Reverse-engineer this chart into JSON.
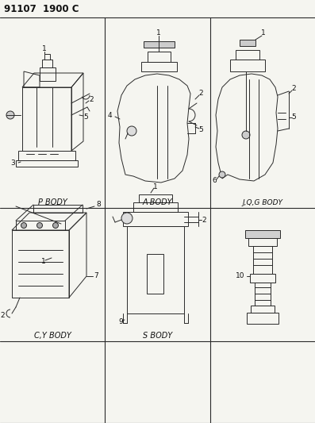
{
  "title": "91107  1900 C",
  "bg_color": "#f5f5f0",
  "line_color": "#2a2a2a",
  "text_color": "#111111",
  "label_color": "#111111",
  "grid_cols": [
    0,
    132,
    265,
    397
  ],
  "grid_rows": [
    22,
    262,
    430,
    533
  ],
  "cell_labels": {
    "p_body": "P BODY",
    "a_body": "A BODY",
    "jqg_body": "J,Q,G BODY",
    "cy_body": "C,Y BODY",
    "s_body": "S BODY"
  }
}
